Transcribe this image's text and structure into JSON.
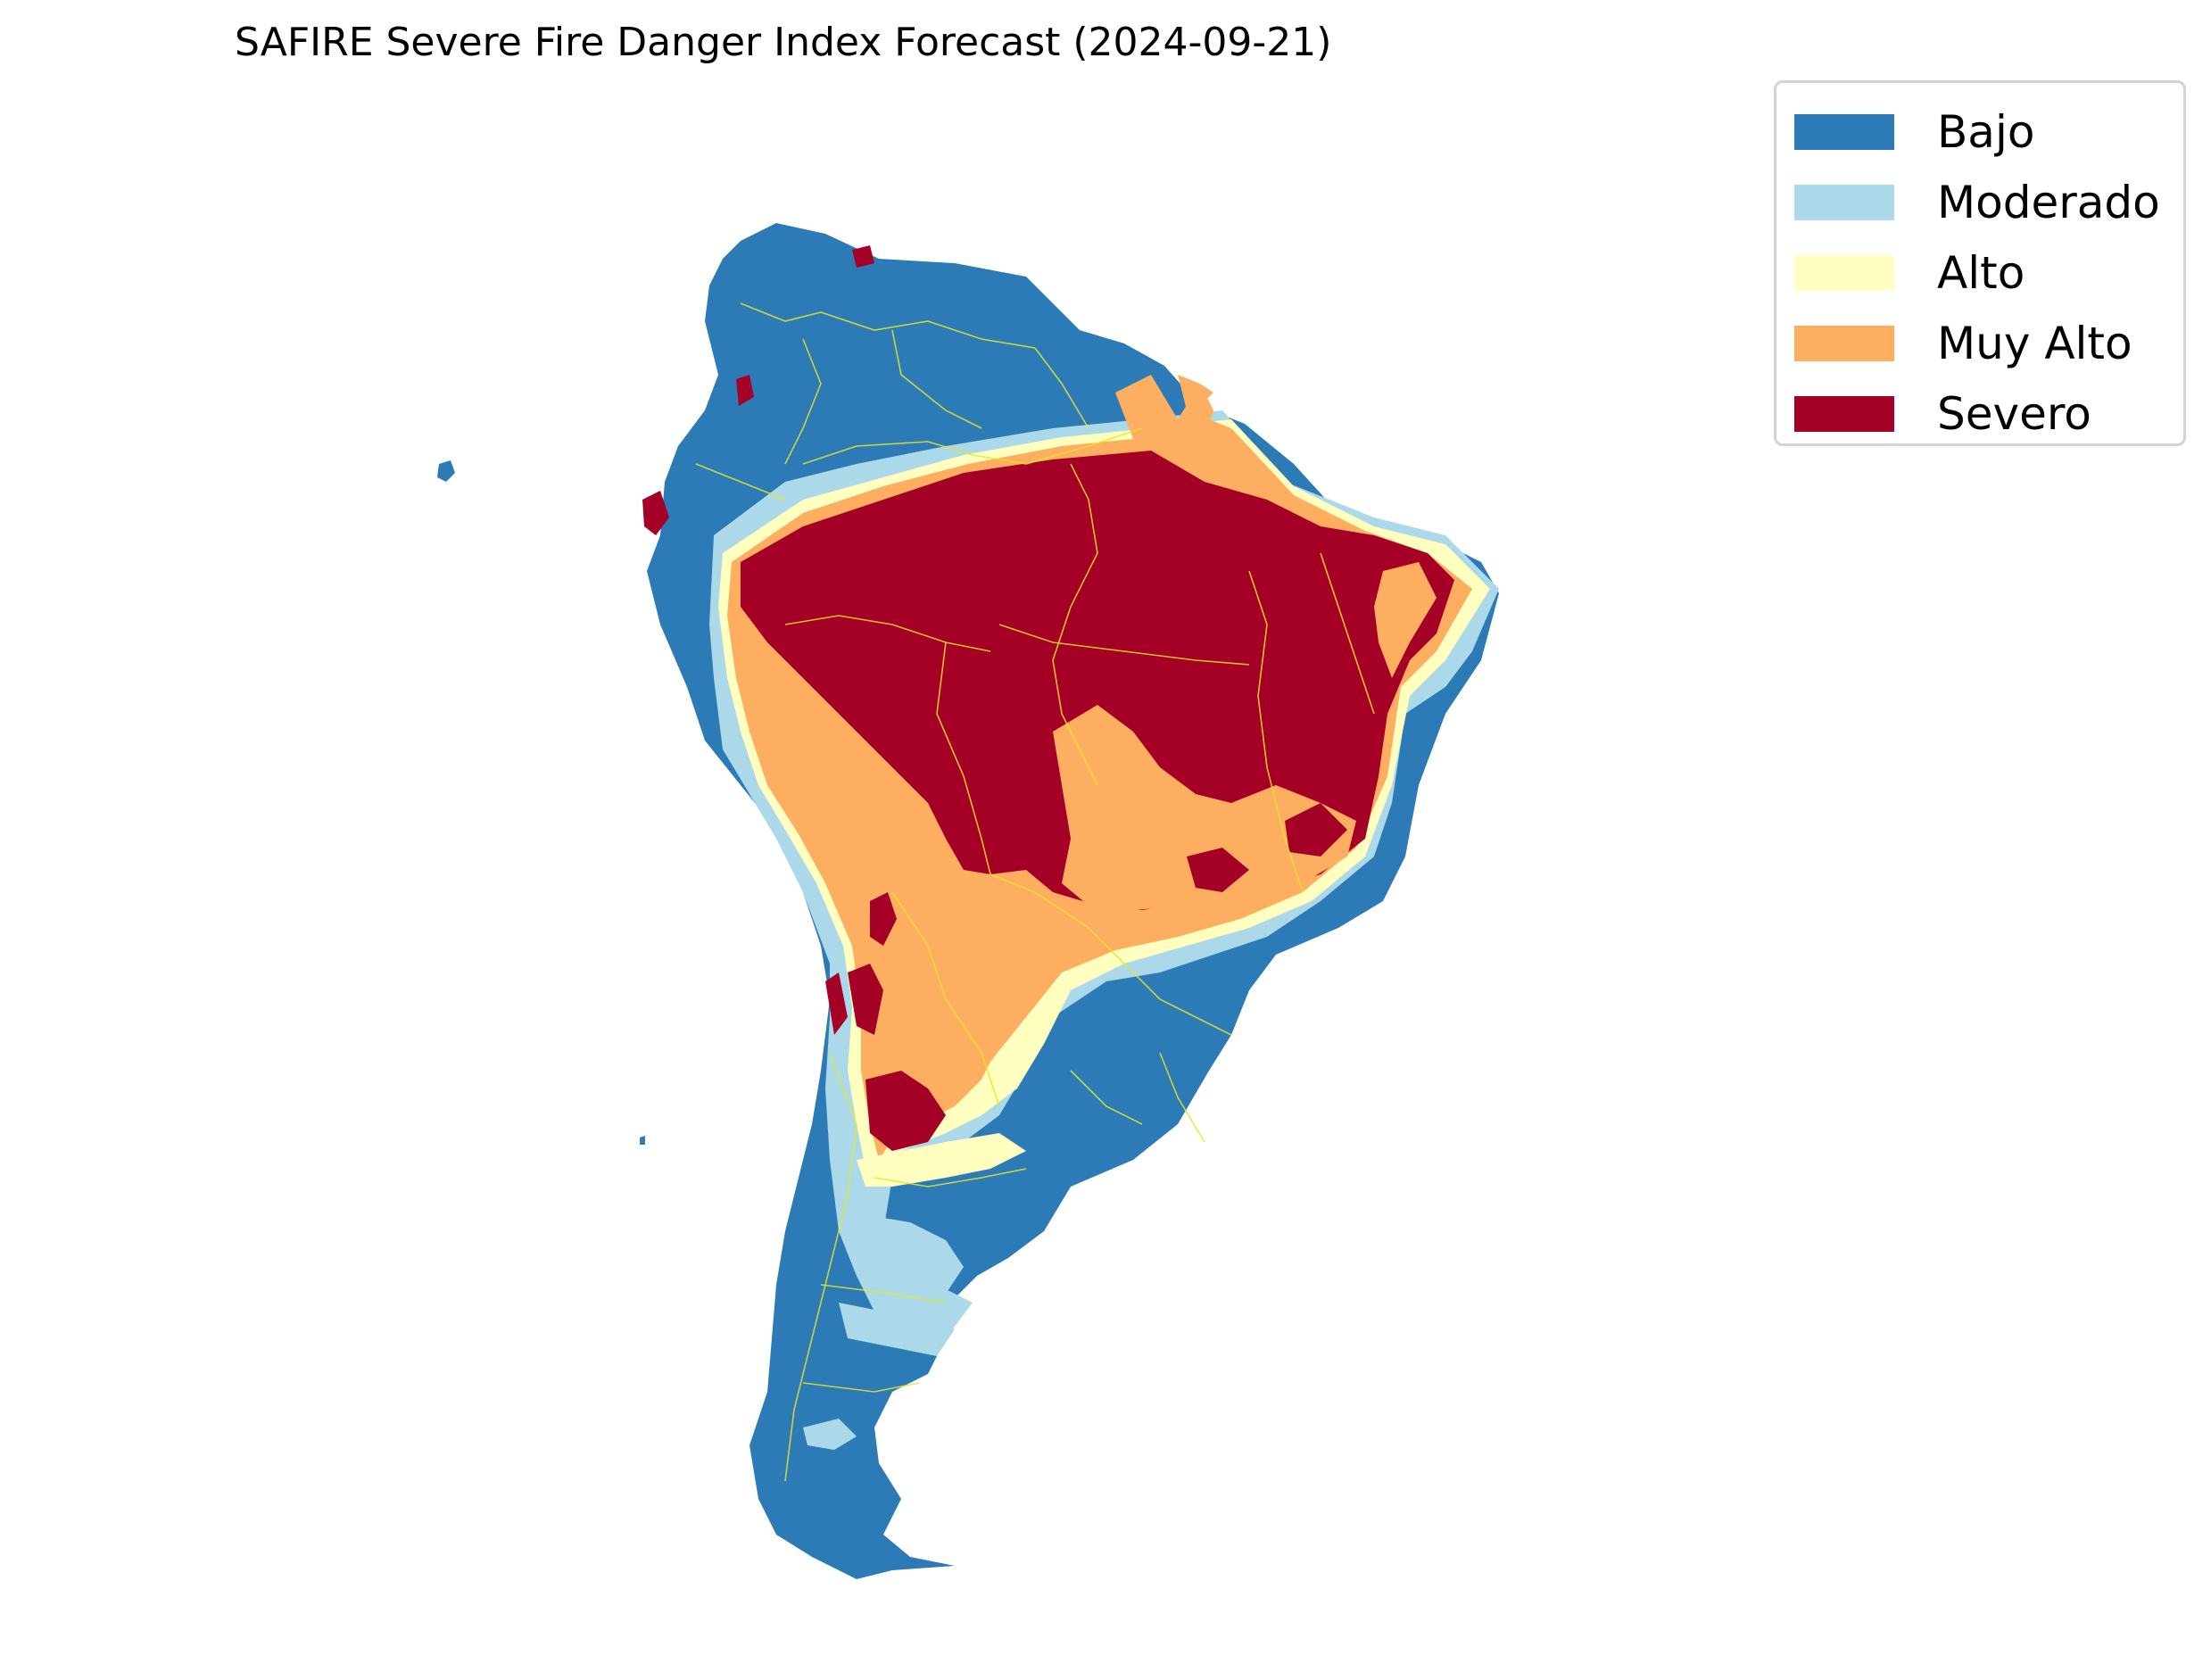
{
  "title": "SAFIRE Severe Fire Danger Index Forecast (2024-09-21)",
  "legend": {
    "items": [
      {
        "label": "Bajo",
        "color": "#2c7bb6"
      },
      {
        "label": "Moderado",
        "color": "#abd9e9"
      },
      {
        "label": "Alto",
        "color": "#ffffbf"
      },
      {
        "label": "Muy Alto",
        "color": "#fdae61"
      },
      {
        "label": "Severo",
        "color": "#a50026"
      }
    ]
  },
  "map": {
    "region": "South America",
    "boundary_color": "#e5e52a"
  }
}
